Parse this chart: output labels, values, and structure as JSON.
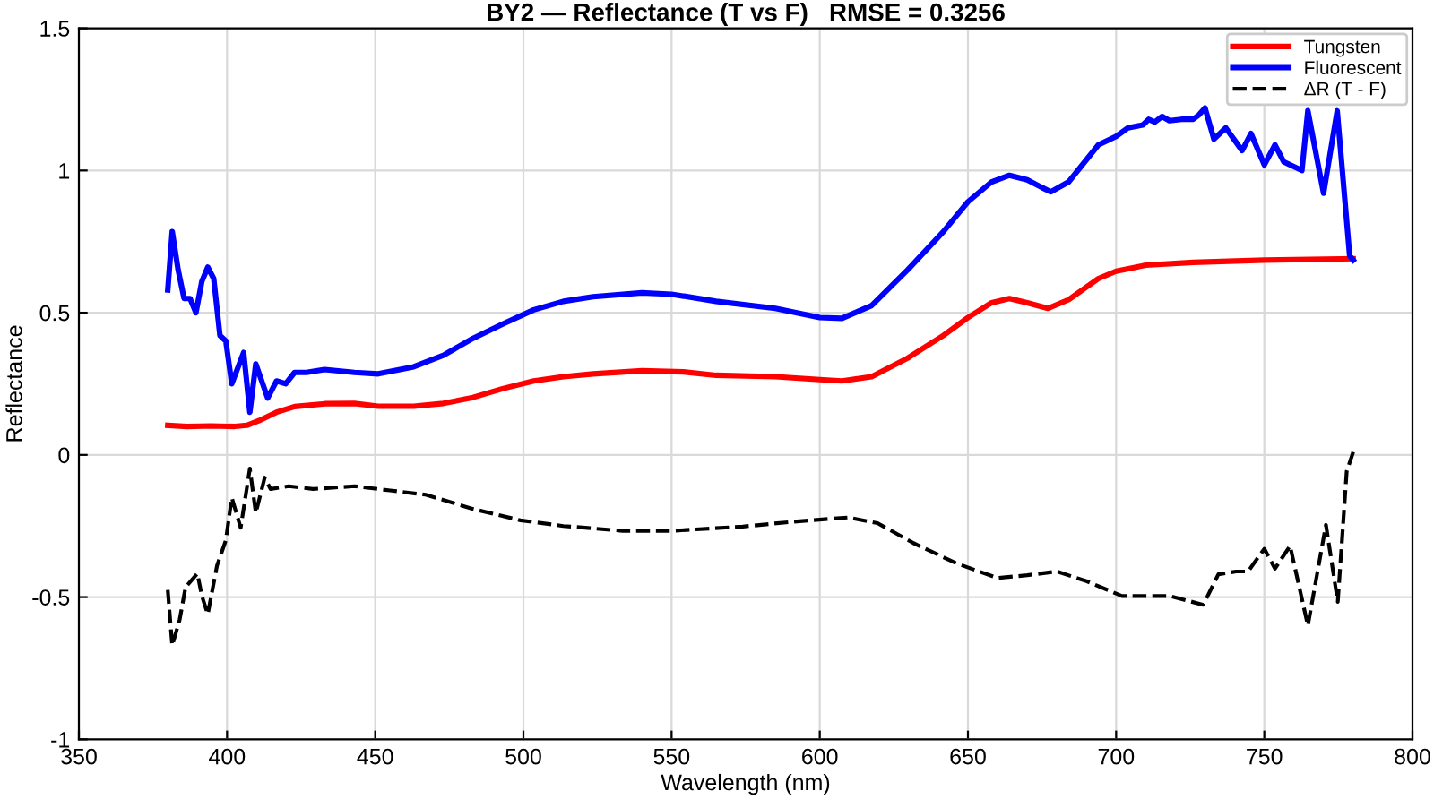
{
  "chart_data": {
    "type": "line",
    "title": "BY2 — Reflectance (T vs F)   RMSE = 0.3256",
    "xlabel": "Wavelength (nm)",
    "ylabel": "Reflectance",
    "xlim": [
      350,
      800
    ],
    "xticks": [
      350,
      400,
      450,
      500,
      550,
      600,
      650,
      700,
      750,
      800
    ],
    "ylim": [
      -1,
      1.5
    ],
    "yticks": [
      -1,
      -0.5,
      0,
      0.5,
      1,
      1.5
    ],
    "grid": true,
    "legend": "top right",
    "series": [
      {
        "name": "Tungsten",
        "color": "#ff0000",
        "line_style": "solid",
        "x": [
          380,
          386.5,
          394.6,
          402.6,
          406.7,
          410.7,
          416.7,
          422.8,
          433,
          443,
          451,
          463,
          473,
          483,
          493,
          503.5,
          513.5,
          523.5,
          540,
          554,
          565,
          585,
          600,
          607.5,
          617.5,
          629.6,
          641.7,
          650,
          658,
          664,
          670,
          677,
          684,
          694,
          700,
          710,
          726,
          750,
          780
        ],
        "values": [
          0.104,
          0.1,
          0.102,
          0.1,
          0.104,
          0.12,
          0.15,
          0.17,
          0.18,
          0.181,
          0.171,
          0.171,
          0.181,
          0.202,
          0.233,
          0.26,
          0.275,
          0.285,
          0.296,
          0.292,
          0.28,
          0.275,
          0.265,
          0.26,
          0.275,
          0.34,
          0.42,
          0.483,
          0.535,
          0.55,
          0.535,
          0.515,
          0.546,
          0.62,
          0.646,
          0.667,
          0.677,
          0.685,
          0.69
        ]
      },
      {
        "name": "Fluorescent",
        "color": "#0000ff",
        "line_style": "solid",
        "x": [
          380,
          381.5,
          383.5,
          385.5,
          387.5,
          389.5,
          391.5,
          393.5,
          395.5,
          397.6,
          399.6,
          401.6,
          405.6,
          407.7,
          409.7,
          413.7,
          416.7,
          419.8,
          422.8,
          426.8,
          432.9,
          443,
          451,
          463,
          473,
          483,
          493,
          503.5,
          513.5,
          523.5,
          540,
          550,
          565,
          585,
          600,
          607.5,
          617.5,
          629.6,
          641.7,
          650,
          658,
          664,
          670,
          675,
          678,
          684,
          694,
          700,
          704,
          709,
          711,
          713,
          715.5,
          718,
          722,
          726,
          728,
          730,
          733,
          737,
          742.5,
          745.5,
          750,
          753.6,
          756.6,
          762.7,
          764.7,
          770,
          774.6,
          778.8,
          780
        ],
        "values": [
          0.58,
          0.785,
          0.65,
          0.55,
          0.55,
          0.5,
          0.61,
          0.66,
          0.62,
          0.42,
          0.4,
          0.25,
          0.36,
          0.15,
          0.32,
          0.2,
          0.26,
          0.25,
          0.29,
          0.29,
          0.3,
          0.29,
          0.285,
          0.31,
          0.35,
          0.41,
          0.46,
          0.51,
          0.54,
          0.556,
          0.57,
          0.565,
          0.54,
          0.515,
          0.483,
          0.48,
          0.525,
          0.65,
          0.785,
          0.89,
          0.96,
          0.983,
          0.967,
          0.94,
          0.925,
          0.96,
          1.09,
          1.12,
          1.15,
          1.16,
          1.18,
          1.17,
          1.19,
          1.175,
          1.18,
          1.18,
          1.196,
          1.22,
          1.11,
          1.15,
          1.07,
          1.13,
          1.02,
          1.09,
          1.03,
          1.0,
          1.21,
          0.92,
          1.21,
          0.7,
          0.685
        ]
      },
      {
        "name": "ΔR (T - F)",
        "color": "#000000",
        "line_style": "dashed",
        "x": [
          380,
          381.5,
          384,
          386,
          390,
          391.5,
          393.5,
          396.6,
          399.6,
          401.6,
          404.6,
          407.7,
          409.7,
          412.7,
          414.7,
          420.8,
          429,
          443,
          455,
          467,
          483,
          499,
          513.5,
          533.5,
          550,
          574,
          591,
          609.5,
          619.5,
          631.6,
          645.8,
          660,
          670,
          680,
          690,
          702,
          710,
          718,
          729.4,
          734.5,
          740.5,
          744.5,
          750,
          753.6,
          758.7,
          764.7,
          770.8,
          774.8,
          777.8,
          780
        ],
        "values": [
          -0.475,
          -0.67,
          -0.58,
          -0.465,
          -0.417,
          -0.496,
          -0.56,
          -0.39,
          -0.3,
          -0.15,
          -0.256,
          -0.048,
          -0.204,
          -0.08,
          -0.12,
          -0.11,
          -0.12,
          -0.11,
          -0.125,
          -0.14,
          -0.19,
          -0.23,
          -0.25,
          -0.267,
          -0.267,
          -0.252,
          -0.235,
          -0.22,
          -0.24,
          -0.31,
          -0.38,
          -0.433,
          -0.423,
          -0.41,
          -0.444,
          -0.496,
          -0.496,
          -0.496,
          -0.527,
          -0.42,
          -0.41,
          -0.41,
          -0.33,
          -0.4,
          -0.32,
          -0.6,
          -0.246,
          -0.517,
          -0.058,
          0.01
        ]
      }
    ]
  }
}
